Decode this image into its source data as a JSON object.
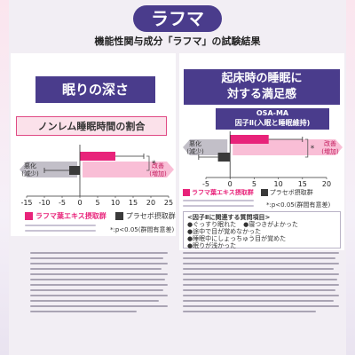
{
  "title": "ラフマ",
  "subtitle": "機能性関与成分「ラフマ」の試験結果",
  "left": {
    "heading": "眠りの深さ",
    "chart_heading": "ノンレム睡眠時間の割合",
    "neg_label_1": "悪化",
    "neg_label_2": "(減少)",
    "pos_label_1": "改善",
    "pos_label_2": "(増加)",
    "star": "*",
    "legend_rafuma": "ラフマ葉エキス摂取群",
    "legend_placebo": "プラセボ摂取群",
    "note": "*:p<0.05(群間有意差)"
  },
  "right": {
    "heading_1": "起床時の睡眠に",
    "heading_2": "対する満足感",
    "chart_heading_1": "OSA-MA",
    "chart_heading_2": "因子Ⅱ(入眠と睡眠維持)",
    "neg_label_1": "悪化",
    "neg_label_2": "(減少)",
    "pos_label_1": "改善",
    "pos_label_2": "(増加)",
    "star": "*",
    "legend_rafuma": "ラフマ葉エキス摂取群",
    "legend_placebo": "プラセボ摂取群",
    "note": "*:p<0.05(群間有意差)",
    "factor_title": "<因子Ⅱに関連する質問項目>",
    "factor_items": [
      "●ぐっすり眠れた",
      "●寝つきがよかった",
      "●途中で目が覚めなかった",
      "●睡眠中にしょっちゅう目が覚めた",
      "●眠りが浅かった"
    ]
  },
  "chart_data": [
    {
      "type": "bar",
      "orientation": "horizontal",
      "categories": [
        "ラフマ葉エキス摂取群",
        "プラセボ摂取群"
      ],
      "values": [
        10,
        -3
      ],
      "error": [
        8,
        7
      ],
      "xlim": [
        -15,
        25
      ],
      "xticks": [
        -15,
        -10,
        -5,
        0,
        5,
        10,
        15,
        20,
        25
      ],
      "colors": [
        "#e8237a",
        "#3a3a3a"
      ],
      "annotation": "*"
    },
    {
      "type": "bar",
      "orientation": "horizontal",
      "categories": [
        "ラフマ葉エキス摂取群",
        "プラセボ摂取群"
      ],
      "values": [
        8,
        -2.5
      ],
      "error": [
        7,
        4
      ],
      "xlim": [
        -5,
        20
      ],
      "xticks": [
        -5,
        0,
        5,
        10,
        15,
        20
      ],
      "colors": [
        "#e8237a",
        "#3a3a3a"
      ],
      "annotation": "*"
    }
  ],
  "colors": {
    "accent": "#4a3c8c",
    "pink": "#e8237a",
    "dark_bar": "#3a3a3a",
    "arrow_pink": "#f7a3c5",
    "arrow_gray": "#9a95a4"
  }
}
